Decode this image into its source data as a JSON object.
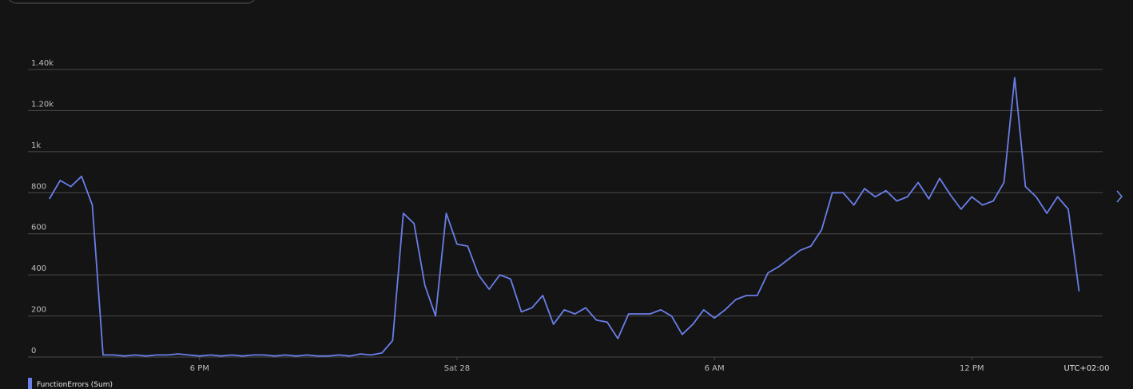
{
  "chart_data": {
    "type": "line",
    "x": [
      14.5,
      14.75,
      15,
      15.25,
      15.5,
      15.75,
      16,
      16.25,
      16.5,
      16.75,
      17,
      17.25,
      17.5,
      17.75,
      18,
      18.25,
      18.5,
      18.75,
      19,
      19.25,
      19.5,
      19.75,
      20,
      20.25,
      20.5,
      20.75,
      21,
      21.25,
      21.5,
      21.75,
      22,
      22.25,
      22.5,
      22.75,
      23,
      23.25,
      23.5,
      23.75,
      24,
      24.25,
      24.5,
      24.75,
      25,
      25.25,
      25.5,
      25.75,
      26,
      26.25,
      26.5,
      26.75,
      27,
      27.25,
      27.5,
      27.75,
      28,
      28.25,
      28.5,
      28.75,
      29,
      29.25,
      29.5,
      29.75,
      30,
      30.25,
      30.5,
      30.75,
      31,
      31.25,
      31.5,
      31.75,
      32,
      32.25,
      32.5,
      32.75,
      33,
      33.25,
      33.5,
      33.75,
      34,
      34.25,
      34.5,
      34.75,
      35,
      35.25,
      35.5,
      35.75,
      36,
      36.25,
      36.5,
      36.75,
      37,
      37.25,
      37.5,
      37.75,
      38,
      38.25,
      38.5
    ],
    "series": [
      {
        "name": "FunctionErrors (Sum)",
        "color": "#6a7ee8",
        "values": [
          770,
          860,
          830,
          880,
          740,
          10,
          10,
          5,
          10,
          5,
          10,
          10,
          15,
          10,
          5,
          10,
          5,
          10,
          5,
          10,
          10,
          5,
          10,
          5,
          10,
          5,
          5,
          10,
          5,
          15,
          10,
          20,
          80,
          700,
          650,
          350,
          200,
          700,
          550,
          540,
          400,
          330,
          400,
          380,
          220,
          240,
          300,
          160,
          230,
          210,
          240,
          180,
          170,
          90,
          210,
          210,
          210,
          230,
          200,
          110,
          160,
          230,
          190,
          230,
          280,
          300,
          300,
          410,
          440,
          480,
          520,
          540,
          620,
          800,
          800,
          740,
          820,
          780,
          810,
          760,
          780,
          850,
          770,
          870,
          790,
          720,
          780,
          740,
          760,
          850,
          1360,
          830,
          780,
          700,
          780,
          720,
          320
        ]
      }
    ],
    "xlim": [
      14,
      39.05
    ],
    "xticks": [
      {
        "value": 18,
        "label": "6 PM"
      },
      {
        "value": 24,
        "label": "Sat 28"
      },
      {
        "value": 30,
        "label": "6 AM"
      },
      {
        "value": 36,
        "label": "12 PM"
      }
    ],
    "timezone_label": "UTC+02:00",
    "ylim": [
      0,
      1400
    ],
    "yticks": [
      0,
      200,
      400,
      600,
      800,
      {
        "value": 1000,
        "label": "1k"
      },
      {
        "value": 1200,
        "label": "1.20k"
      },
      {
        "value": 1400,
        "label": "1.40k"
      }
    ],
    "grid": true
  }
}
